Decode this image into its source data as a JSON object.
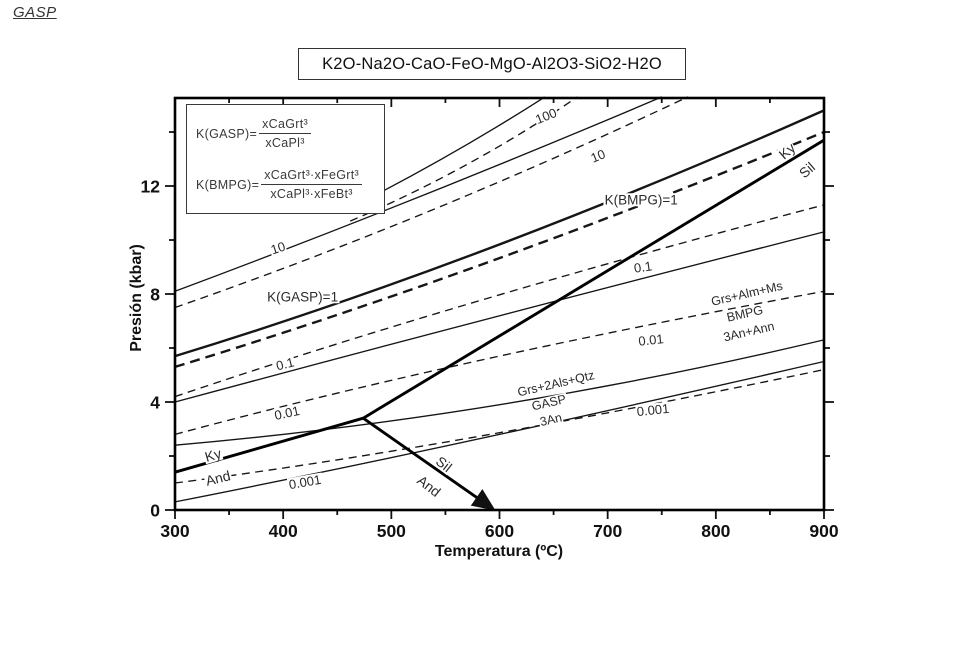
{
  "page": {
    "corner_label": "GASP",
    "background": "#ffffff",
    "ink": "#111111"
  },
  "legend": {
    "eq1": {
      "lhs": "K(GASP)=",
      "numerator": "xCaGrt³",
      "denominator": "xCaPl³"
    },
    "eq2": {
      "lhs": "K(BMPG)=",
      "numerator": "xCaGrt³·xFeGrt³",
      "denominator": "xCaPl³·xFeBt³"
    }
  },
  "chart_data": {
    "type": "line",
    "title": "K2O-Na2O-CaO-FeO-MgO-Al2O3-SiO2-H2O",
    "xlabel": "Temperatura (ºC)",
    "ylabel": "Presión (kbar)",
    "xlim": [
      300,
      900
    ],
    "ylim": [
      0,
      15.26
    ],
    "x_ticks": [
      300,
      400,
      500,
      600,
      700,
      800,
      900
    ],
    "x_minor_ticks": [
      350,
      450,
      550,
      650,
      750,
      850
    ],
    "y_ticks": [
      0,
      4,
      8,
      12
    ],
    "y_minor_ticks": [
      2,
      6,
      10,
      14
    ],
    "grid": false,
    "legend_position": "none",
    "series": [
      {
        "name": "K(GASP)=100",
        "group": "GASP",
        "K": 100,
        "style": "solid",
        "bold": false,
        "points": [
          [
            453,
            11.0
          ],
          [
            551,
            13.1
          ],
          [
            642,
            15.3
          ]
        ]
      },
      {
        "name": "K(GASP)=10",
        "group": "GASP",
        "K": 10,
        "style": "solid",
        "bold": false,
        "points": [
          [
            300,
            8.1
          ],
          [
            526,
            11.6
          ],
          [
            750,
            15.3
          ]
        ]
      },
      {
        "name": "K(GASP)=1",
        "group": "GASP",
        "K": 1,
        "style": "solid",
        "bold": true,
        "points": [
          [
            300,
            5.7
          ],
          [
            591,
            9.7
          ],
          [
            900,
            14.8
          ]
        ]
      },
      {
        "name": "K(GASP)=0.1",
        "group": "GASP",
        "K": 0.1,
        "style": "solid",
        "bold": false,
        "points": [
          [
            300,
            4.0
          ],
          [
            591,
            7.1
          ],
          [
            900,
            10.3
          ]
        ]
      },
      {
        "name": "K(GASP)=0.01",
        "group": "GASP",
        "K": 0.01,
        "style": "solid",
        "bold": false,
        "points": [
          [
            300,
            2.4
          ],
          [
            600,
            3.9
          ],
          [
            900,
            6.3
          ]
        ]
      },
      {
        "name": "K(GASP)=0.001",
        "group": "GASP",
        "K": 0.001,
        "style": "solid",
        "bold": false,
        "points": [
          [
            300,
            0.3
          ],
          [
            577,
            2.6
          ],
          [
            900,
            5.5
          ]
        ]
      },
      {
        "name": "K(BMPG)=100",
        "group": "BMPG",
        "K": 100,
        "style": "dashed",
        "bold": false,
        "points": [
          [
            462,
            10.7
          ],
          [
            570,
            12.8
          ],
          [
            672,
            15.3
          ]
        ]
      },
      {
        "name": "K(BMPG)=10",
        "group": "BMPG",
        "K": 10,
        "style": "dashed",
        "bold": false,
        "points": [
          [
            300,
            7.5
          ],
          [
            537,
            11.1
          ],
          [
            774,
            15.3
          ]
        ]
      },
      {
        "name": "K(BMPG)=1",
        "group": "BMPG",
        "K": 1,
        "style": "dashed",
        "bold": true,
        "points": [
          [
            300,
            5.3
          ],
          [
            591,
            9.2
          ],
          [
            900,
            14.0
          ]
        ]
      },
      {
        "name": "K(BMPG)=0.1",
        "group": "BMPG",
        "K": 0.1,
        "style": "dashed",
        "bold": false,
        "points": [
          [
            300,
            4.2
          ],
          [
            577,
            7.7
          ],
          [
            900,
            11.3
          ]
        ]
      },
      {
        "name": "K(BMPG)=0.01",
        "group": "BMPG",
        "K": 0.01,
        "style": "dashed",
        "bold": false,
        "points": [
          [
            300,
            2.8
          ],
          [
            577,
            5.5
          ],
          [
            900,
            8.1
          ]
        ]
      },
      {
        "name": "K(BMPG)=0.001",
        "group": "BMPG",
        "K": 0.001,
        "style": "dashed",
        "bold": false,
        "points": [
          [
            300,
            1.0
          ],
          [
            577,
            2.7
          ],
          [
            900,
            5.2
          ]
        ]
      }
    ],
    "boundaries": [
      {
        "name": "Ky-And",
        "style": "solid",
        "bold": true,
        "points": [
          [
            300,
            1.4
          ],
          [
            474,
            3.4
          ]
        ],
        "arrow_end": false
      },
      {
        "name": "Ky-Sil",
        "style": "solid",
        "bold": true,
        "points": [
          [
            474,
            3.4
          ],
          [
            900,
            13.7
          ]
        ],
        "arrow_end": false
      },
      {
        "name": "Sil-And",
        "style": "solid",
        "bold": true,
        "points": [
          [
            474,
            3.4
          ],
          [
            592,
            0.1
          ]
        ],
        "arrow_end": true
      }
    ],
    "annotations": [
      {
        "text": "100",
        "t": 643,
        "p": 14.6,
        "rot": -22,
        "fs": 13
      },
      {
        "text": "10",
        "t": 691,
        "p": 13.1,
        "rot": -22,
        "fs": 13
      },
      {
        "text": "K(BMPG)=1",
        "t": 731,
        "p": 11.5,
        "rot": 0,
        "fs": 13.5
      },
      {
        "text": "10",
        "t": 395,
        "p": 9.7,
        "rot": -18,
        "fs": 13
      },
      {
        "text": "K(GASP)=1",
        "t": 418,
        "p": 7.9,
        "rot": 0,
        "fs": 13.5
      },
      {
        "text": "0.1",
        "t": 402,
        "p": 5.4,
        "rot": -14,
        "fs": 13
      },
      {
        "text": "0.1",
        "t": 733,
        "p": 9.0,
        "rot": -8,
        "fs": 13
      },
      {
        "text": "0.01",
        "t": 404,
        "p": 3.6,
        "rot": -12,
        "fs": 13
      },
      {
        "text": "0.01",
        "t": 740,
        "p": 6.3,
        "rot": -6,
        "fs": 13
      },
      {
        "text": "0.001",
        "t": 420,
        "p": 1.05,
        "rot": -10,
        "fs": 13
      },
      {
        "text": "0.001",
        "t": 742,
        "p": 3.7,
        "rot": -6,
        "fs": 13
      },
      {
        "text": "Ky",
        "t": 335,
        "p": 2.05,
        "rot": -16,
        "fs": 14
      },
      {
        "text": "And",
        "t": 340,
        "p": 1.2,
        "rot": -14,
        "fs": 14
      },
      {
        "text": "Ky",
        "t": 866,
        "p": 13.3,
        "rot": -41,
        "fs": 14
      },
      {
        "text": "Sil",
        "t": 884,
        "p": 12.6,
        "rot": -41,
        "fs": 14
      },
      {
        "text": "Sil",
        "t": 549,
        "p": 1.7,
        "rot": 38,
        "fs": 14
      },
      {
        "text": "And",
        "t": 535,
        "p": 0.9,
        "rot": 38,
        "fs": 14
      },
      {
        "text": "Grs+Alm+Ms",
        "t": 829,
        "p": 8.0,
        "rot": -13,
        "fs": 12.5
      },
      {
        "text": "BMPG",
        "t": 827,
        "p": 7.25,
        "rot": -13,
        "fs": 12.5
      },
      {
        "text": "3An+Ann",
        "t": 831,
        "p": 6.6,
        "rot": -13,
        "fs": 12.5
      },
      {
        "text": "Grs+2Als+Qtz",
        "t": 652,
        "p": 4.65,
        "rot": -13,
        "fs": 12.5
      },
      {
        "text": "GASP",
        "t": 646,
        "p": 3.95,
        "rot": -13,
        "fs": 12.5
      },
      {
        "text": "3An",
        "t": 648,
        "p": 3.35,
        "rot": -13,
        "fs": 12.5
      }
    ]
  }
}
